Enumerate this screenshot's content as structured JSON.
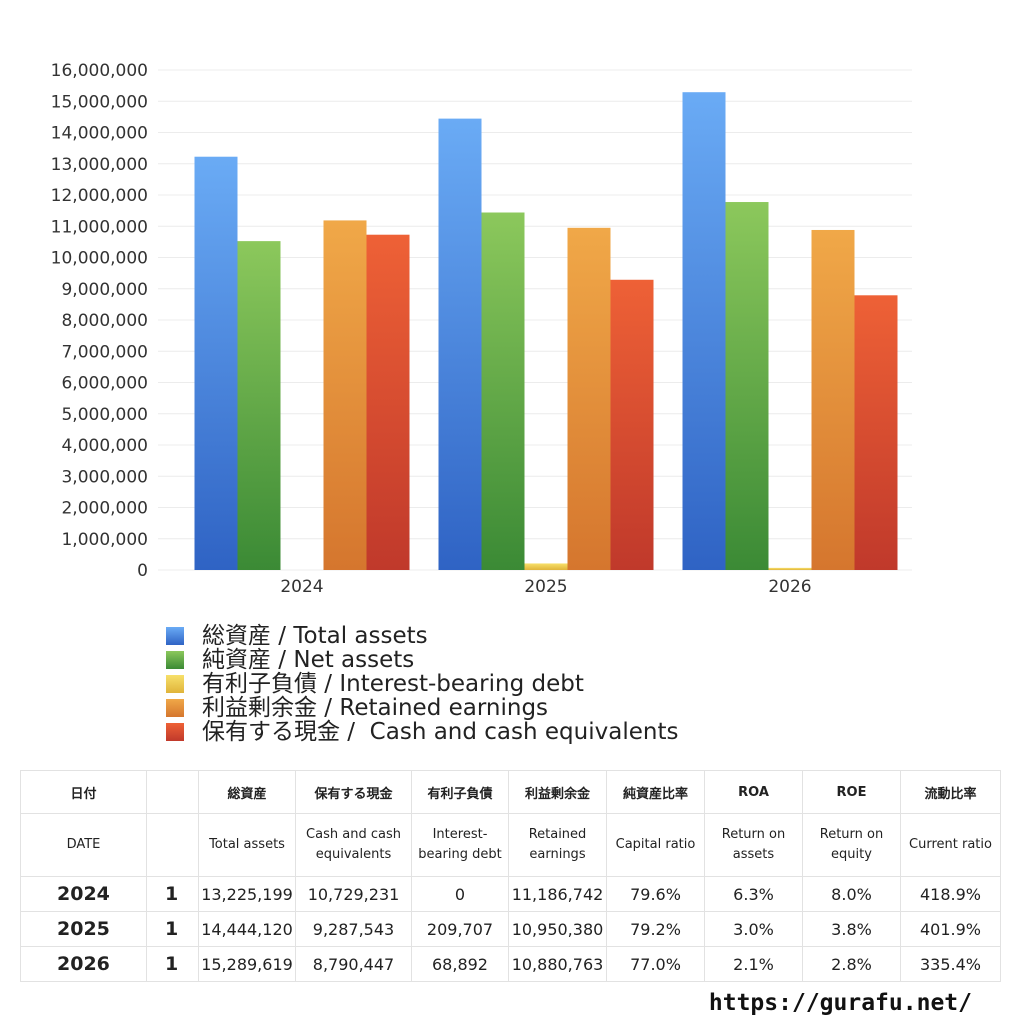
{
  "chart_data": {
    "type": "bar",
    "categories": [
      "2024",
      "2025",
      "2026"
    ],
    "ylim": [
      0,
      16000000
    ],
    "yticks": [
      "0",
      "1,000,000",
      "2,000,000",
      "3,000,000",
      "4,000,000",
      "5,000,000",
      "6,000,000",
      "7,000,000",
      "8,000,000",
      "9,000,000",
      "10,000,000",
      "11,000,000",
      "12,000,000",
      "13,000,000",
      "14,000,000",
      "15,000,000",
      "16,000,000"
    ],
    "grid": true,
    "legend_position": "bottom",
    "series": [
      {
        "name": "総資産 / Total assets",
        "values": [
          13225199,
          14444120,
          15289619
        ],
        "color_top": "#6aabf5",
        "color_bottom": "#2f63c4"
      },
      {
        "name": "純資産 / Net assets",
        "values": [
          10524000,
          11440000,
          11775000
        ],
        "color_top": "#8cc85c",
        "color_bottom": "#3b8a35"
      },
      {
        "name": "有利子負債 / Interest-bearing debt",
        "values": [
          0,
          209707,
          68892
        ],
        "color_top": "#f7e06a",
        "color_bottom": "#e0b43a"
      },
      {
        "name": "利益剰余金 / Retained earnings",
        "values": [
          11186742,
          10950380,
          10880763
        ],
        "color_top": "#f0a848",
        "color_bottom": "#d5762e"
      },
      {
        "name": "保有する現金 /  Cash and cash equivalents",
        "values": [
          10729231,
          9287543,
          8790447
        ],
        "color_top": "#ee6136",
        "color_bottom": "#c0392b"
      }
    ]
  },
  "table": {
    "header_jp": [
      "日付",
      "",
      "総資産",
      "保有する現金",
      "有利子負債",
      "利益剰余金",
      "純資産比率",
      "ROA",
      "ROE",
      "流動比率"
    ],
    "header_en": [
      "DATE",
      "",
      "Total assets",
      "Cash and cash equivalents",
      "Interest-bearing debt",
      "Retained earnings",
      "Capital ratio",
      "Return on assets",
      "Return on equity",
      "Current ratio"
    ],
    "rows": [
      [
        "2024",
        "1",
        "13,225,199",
        "10,729,231",
        "0",
        "11,186,742",
        "79.6%",
        "6.3%",
        "8.0%",
        "418.9%"
      ],
      [
        "2025",
        "1",
        "14,444,120",
        "9,287,543",
        "209,707",
        "10,950,380",
        "79.2%",
        "3.0%",
        "3.8%",
        "401.9%"
      ],
      [
        "2026",
        "1",
        "15,289,619",
        "8,790,447",
        "68,892",
        "10,880,763",
        "77.0%",
        "2.1%",
        "2.8%",
        "335.4%"
      ]
    ]
  },
  "footer": {
    "url": "https://gurafu.net/"
  }
}
